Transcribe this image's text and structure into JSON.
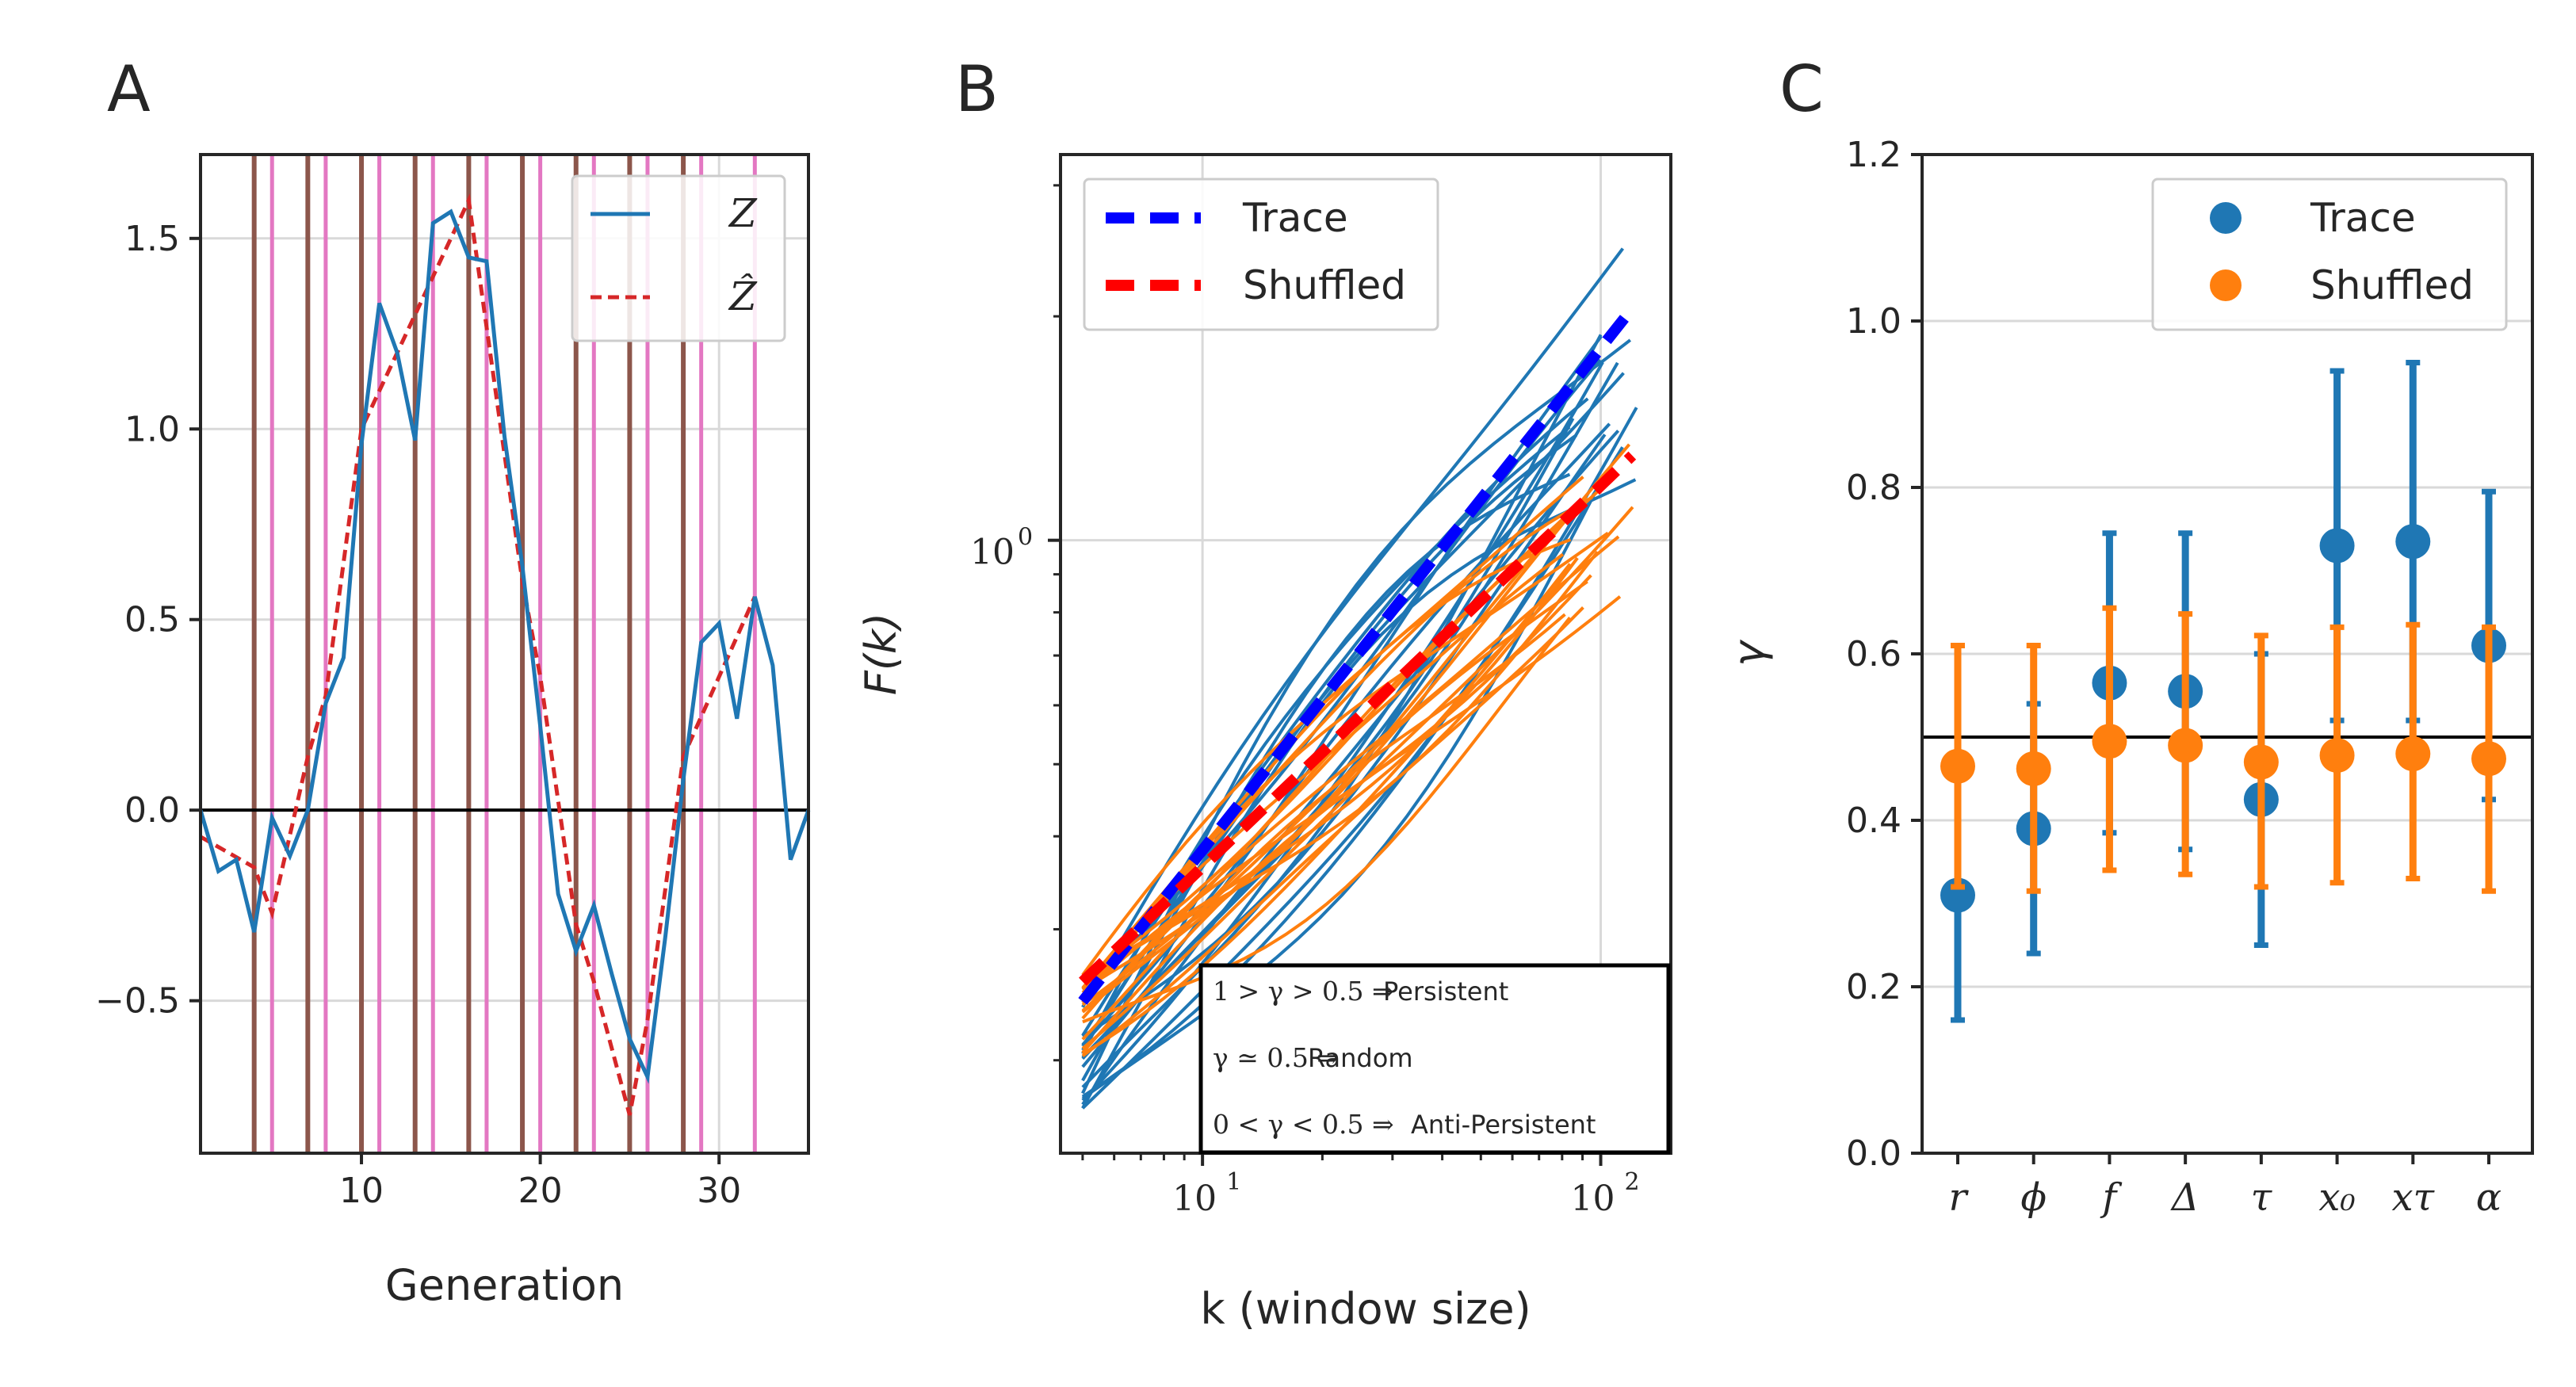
{
  "panels": {
    "a": {
      "letter": "A"
    },
    "b": {
      "letter": "B"
    },
    "c": {
      "letter": "C"
    }
  },
  "chart_data": [
    {
      "panel": "A",
      "type": "line",
      "xlabel": "Generation",
      "ylabel": "",
      "xlim": [
        1,
        35
      ],
      "ylim": [
        -0.9,
        1.72
      ],
      "xticks": [
        10,
        20,
        30
      ],
      "yticks": [
        -0.5,
        0.0,
        0.5,
        1.0,
        1.5
      ],
      "ytick_labels": [
        "−0.5",
        "0.0",
        "0.5",
        "1.0",
        "1.5"
      ],
      "grid": true,
      "legend_position": "top-right",
      "hline": 0,
      "colors": {
        "brown_lines": "#8c564b",
        "pink_lines": "#e377c2",
        "z": "#1f77b4",
        "zhat": "#d62728"
      },
      "brown_vlines": [
        4,
        7,
        10,
        13,
        16,
        19,
        22,
        25,
        28
      ],
      "pink_vlines": [
        5,
        8,
        11,
        14,
        17,
        20,
        23,
        26,
        29,
        32
      ],
      "series": [
        {
          "name": "Z",
          "style": "solid",
          "x": [
            1,
            2,
            3,
            4,
            5,
            6,
            7,
            8,
            9,
            10,
            11,
            12,
            13,
            14,
            15,
            16,
            17,
            18,
            19,
            20,
            21,
            22,
            23,
            24,
            25,
            26,
            27,
            28,
            29,
            30,
            31,
            32,
            33,
            34,
            35
          ],
          "y": [
            0.0,
            -0.16,
            -0.13,
            -0.32,
            -0.02,
            -0.12,
            0.0,
            0.28,
            0.4,
            0.96,
            1.33,
            1.2,
            0.97,
            1.54,
            1.57,
            1.45,
            1.44,
            0.98,
            0.64,
            0.22,
            -0.22,
            -0.37,
            -0.25,
            -0.43,
            -0.6,
            -0.7,
            -0.33,
            0.08,
            0.44,
            0.49,
            0.24,
            0.56,
            0.38,
            -0.13,
            0.0
          ]
        },
        {
          "name": "Ẑ",
          "style": "dashed",
          "x": [
            1,
            4,
            5,
            7,
            8,
            10,
            13,
            16,
            19,
            20,
            22,
            23,
            25,
            26,
            28,
            32
          ],
          "y": [
            -0.07,
            -0.15,
            -0.27,
            0.14,
            0.3,
            1.0,
            1.3,
            1.6,
            0.6,
            0.35,
            -0.3,
            -0.45,
            -0.8,
            -0.55,
            0.14,
            0.56
          ]
        }
      ]
    },
    {
      "panel": "B",
      "type": "line",
      "xlabel": "k (window size)",
      "ylabel": "F(k)",
      "xscale": "log",
      "yscale": "log",
      "xlim": [
        4.4,
        150
      ],
      "ylim": [
        0.15,
        3.3
      ],
      "xtick_labels": [
        "10",
        "10"
      ],
      "xtick_exponents": [
        "1",
        "2"
      ],
      "ytick_label": "10",
      "ytick_exponent": "0",
      "grid": true,
      "legend_position": "top-left",
      "colors": {
        "trace": "#0000ff",
        "shuffled": "#ff0000",
        "trace_runs": "#1f77b4",
        "shuffled_runs": "#ff7f0e"
      },
      "series": [
        {
          "name": "Trace",
          "style": "dashed-fit",
          "x": [
            5,
            120
          ],
          "y": [
            0.24,
            2.05
          ]
        },
        {
          "name": "Shuffled",
          "style": "dashed-fit",
          "x": [
            5,
            120
          ],
          "y": [
            0.255,
            1.3
          ]
        }
      ],
      "trace_run_count": 20,
      "shuffled_run_count": 20,
      "annotation_lines": [
        {
          "math": "1 > γ > 0.5 ⇒",
          "text": "Persistent"
        },
        {
          "math": "γ ≃ 0.5 ⇒",
          "text": "Random"
        },
        {
          "math": "0 < γ < 0.5 ⇒",
          "text": "Anti-Persistent"
        }
      ]
    },
    {
      "panel": "C",
      "type": "scatter",
      "xlabel": "",
      "ylabel": "γ",
      "ylim": [
        0.0,
        1.2
      ],
      "yticks": [
        0.0,
        0.2,
        0.4,
        0.6,
        0.8,
        1.0,
        1.2
      ],
      "ytick_labels": [
        "0.0",
        "0.2",
        "0.4",
        "0.6",
        "0.8",
        "1.0",
        "1.2"
      ],
      "grid": true,
      "legend_position": "top-right",
      "hline": 0.5,
      "categories": [
        "r",
        "ϕ",
        "f",
        "Δ",
        "τ",
        "x₀",
        "xτ",
        "α"
      ],
      "series": [
        {
          "name": "Trace",
          "color": "#1f77b4",
          "values": [
            0.31,
            0.39,
            0.565,
            0.555,
            0.425,
            0.73,
            0.735,
            0.61
          ],
          "err_low": [
            0.16,
            0.24,
            0.385,
            0.365,
            0.25,
            0.52,
            0.52,
            0.425
          ],
          "err_high": [
            0.46,
            0.54,
            0.745,
            0.745,
            0.6,
            0.94,
            0.95,
            0.795
          ]
        },
        {
          "name": "Shuffled",
          "color": "#ff7f0e",
          "values": [
            0.465,
            0.462,
            0.495,
            0.49,
            0.47,
            0.478,
            0.48,
            0.474
          ],
          "err_low": [
            0.32,
            0.315,
            0.34,
            0.335,
            0.32,
            0.325,
            0.33,
            0.315
          ],
          "err_high": [
            0.61,
            0.61,
            0.655,
            0.648,
            0.622,
            0.632,
            0.635,
            0.632
          ]
        }
      ]
    }
  ]
}
